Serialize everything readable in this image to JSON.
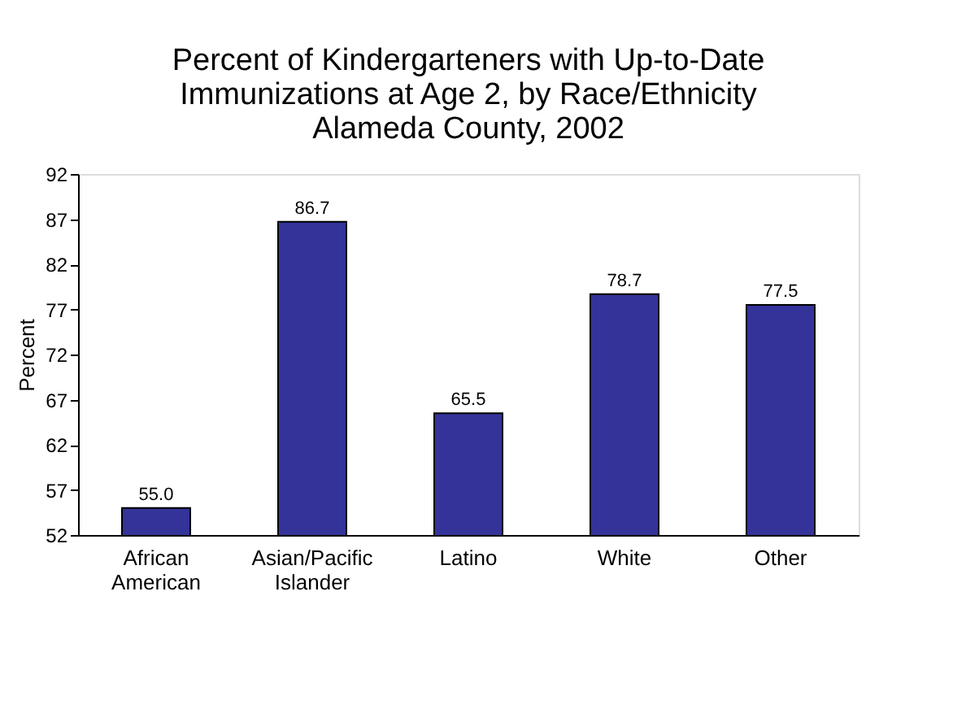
{
  "chart_data": {
    "type": "bar",
    "title": [
      "Percent of Kindergarteners with Up-to-Date",
      "Immunizations at Age 2, by Race/Ethnicity",
      "Alameda County, 2002"
    ],
    "categories": [
      "African American",
      "Asian/Pacific Islander",
      "Latino",
      "White",
      "Other"
    ],
    "values": [
      55.0,
      86.7,
      65.5,
      78.7,
      77.5
    ],
    "color": "#333399",
    "ylabel": "Percent",
    "ylim": [
      52,
      92
    ],
    "yticks": [
      52,
      57,
      62,
      67,
      72,
      77,
      82,
      87,
      92
    ],
    "grid": false,
    "value_labels": [
      "55.0",
      "86.7",
      "65.5",
      "78.7",
      "77.5"
    ]
  }
}
